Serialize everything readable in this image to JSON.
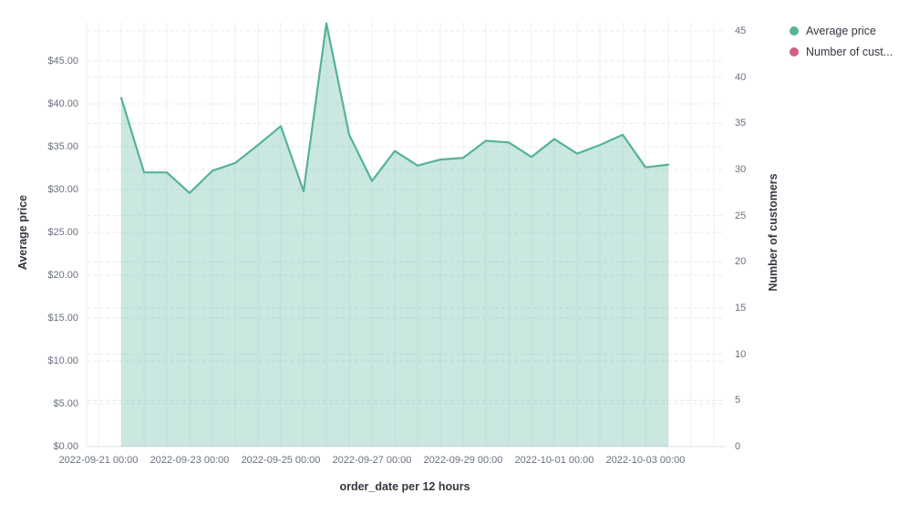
{
  "legend": {
    "items": [
      {
        "label": "Average price",
        "color": "#54B399"
      },
      {
        "label": "Number of cust...",
        "color": "#D36086"
      }
    ]
  },
  "chart_data": {
    "type": "area",
    "x_axis_title": "order_date per 12 hours",
    "x_tick_labels": [
      "2022-09-21 00:00",
      "2022-09-23 00:00",
      "2022-09-25 00:00",
      "2022-09-27 00:00",
      "2022-09-29 00:00",
      "2022-10-01 00:00",
      "2022-10-03 00:00"
    ],
    "left_axis": {
      "title": "Average price",
      "tick_labels": [
        "$0.00",
        "$5.00",
        "$10.00",
        "$15.00",
        "$20.00",
        "$25.00",
        "$30.00",
        "$35.00",
        "$40.00",
        "$45.00"
      ],
      "range": [
        0,
        50
      ]
    },
    "right_axis": {
      "title": "Number of customers",
      "tick_labels": [
        "0",
        "5",
        "10",
        "15",
        "20",
        "25",
        "30",
        "35",
        "40",
        "45"
      ],
      "range": [
        0,
        46
      ]
    },
    "grid": {
      "vertical_interval": "12 hours",
      "horizontal": "dashed",
      "on": true
    },
    "legend_position": "top-right",
    "x": [
      "2022-09-21 12:00",
      "2022-09-22 00:00",
      "2022-09-22 12:00",
      "2022-09-23 00:00",
      "2022-09-23 12:00",
      "2022-09-24 00:00",
      "2022-09-24 12:00",
      "2022-09-25 00:00",
      "2022-09-25 12:00",
      "2022-09-26 00:00",
      "2022-09-26 12:00",
      "2022-09-27 00:00",
      "2022-09-27 12:00",
      "2022-09-28 00:00",
      "2022-09-28 12:00",
      "2022-09-29 00:00",
      "2022-09-29 12:00",
      "2022-09-30 00:00",
      "2022-09-30 12:00",
      "2022-10-01 00:00",
      "2022-10-01 12:00",
      "2022-10-02 00:00",
      "2022-10-02 12:00",
      "2022-10-03 00:00",
      "2022-10-03 12:00"
    ],
    "series": [
      {
        "name": "Average price",
        "type": "area",
        "axis": "left",
        "color": "#54B399",
        "fill_opacity": 0.3,
        "values": [
          40.7,
          32.0,
          32.0,
          29.6,
          32.2,
          33.1,
          35.2,
          37.4,
          29.8,
          49.4,
          36.4,
          31.0,
          34.5,
          32.8,
          33.5,
          33.7,
          35.7,
          35.5,
          33.8,
          35.9,
          34.2,
          35.2,
          36.4,
          32.6,
          32.9
        ]
      },
      {
        "name": "Number of cust...",
        "type": "line",
        "axis": "right",
        "color": "#D36086",
        "values": []
      }
    ]
  }
}
